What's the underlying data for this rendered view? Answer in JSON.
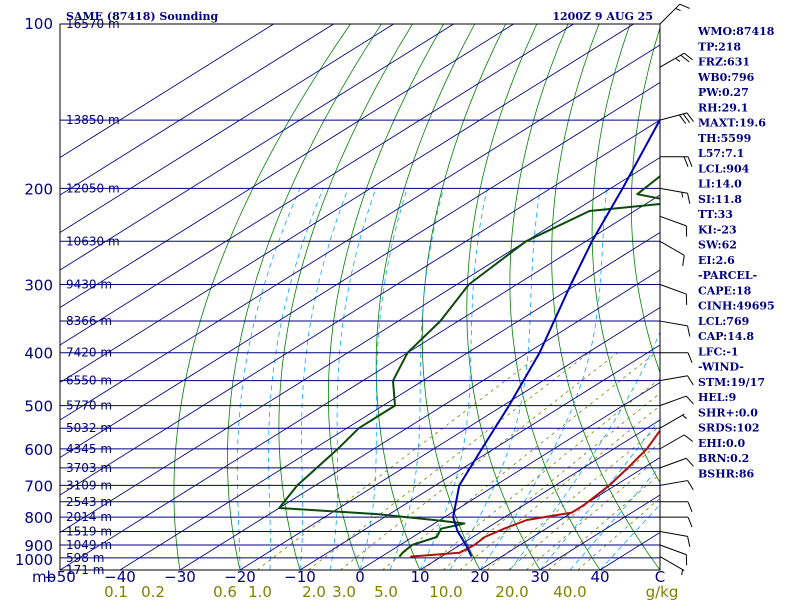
{
  "chart_data": {
    "type": "line",
    "title": "SAME (87418) Sounding",
    "datetime": "1200Z  9 AUG 25",
    "pressure_ticks": [
      "100",
      "200",
      "300",
      "400",
      "500",
      "600",
      "700",
      "800",
      "900",
      "1000"
    ],
    "pressure_tick_values": [
      100,
      200,
      300,
      400,
      500,
      600,
      700,
      800,
      900,
      1000
    ],
    "temperature_axis_unit": "mb",
    "temperature_ticks": [
      "−50",
      "−40",
      "−30",
      "−20",
      "−10",
      "0",
      "10",
      "20",
      "30",
      "40",
      "C"
    ],
    "temperature_tick_values": [
      -50,
      -40,
      -30,
      -20,
      -10,
      0,
      10,
      20,
      30,
      40
    ],
    "mixing_ratio_ticks": [
      "0.1",
      "0.2",
      "0.6",
      "1.0",
      "2.0",
      "3.0",
      "5.0",
      "10.0",
      "20.0",
      "40.0",
      "g/kg"
    ],
    "height_levels": [
      {
        "p": 100,
        "label": "16570 m"
      },
      {
        "p": 150,
        "label": "13850 m"
      },
      {
        "p": 200,
        "label": "12050 m"
      },
      {
        "p": 250,
        "label": "10630 m"
      },
      {
        "p": 300,
        "label": "9430 m"
      },
      {
        "p": 350,
        "label": "8366 m"
      },
      {
        "p": 400,
        "label": "7420 m"
      },
      {
        "p": 450,
        "label": "6550 m"
      },
      {
        "p": 500,
        "label": "5770 m"
      },
      {
        "p": 550,
        "label": "5032 m"
      },
      {
        "p": 600,
        "label": "4345 m"
      },
      {
        "p": 650,
        "label": "3703 m"
      },
      {
        "p": 700,
        "label": "3109 m"
      },
      {
        "p": 750,
        "label": "2543 m"
      },
      {
        "p": 800,
        "label": "2014 m"
      },
      {
        "p": 850,
        "label": "1519 m"
      },
      {
        "p": 900,
        "label": "1049 m"
      },
      {
        "p": 950,
        "label": "598 m"
      },
      {
        "p": 1000,
        "label": "171 m"
      }
    ],
    "series": [
      {
        "name": "Temperature",
        "color": "#b01010",
        "points": [
          [
            945,
            4.8
          ],
          [
            930,
            12.0
          ],
          [
            900,
            12.4
          ],
          [
            870,
            12.0
          ],
          [
            840,
            13.0
          ],
          [
            810,
            14.5
          ],
          [
            785,
            20.0
          ],
          [
            760,
            20.0
          ],
          [
            700,
            19.0
          ],
          [
            650,
            17.4
          ],
          [
            600,
            15.5
          ],
          [
            550,
            12.5
          ],
          [
            500,
            7.0
          ],
          [
            450,
            2.5
          ],
          [
            400,
            -2.0
          ],
          [
            350,
            -8.5
          ],
          [
            300,
            -13.0
          ],
          [
            250,
            -19.0
          ],
          [
            230,
            -22.0
          ],
          [
            215,
            -23.5
          ],
          [
            200,
            -19.5
          ],
          [
            190,
            -18.0
          ],
          [
            175,
            -16.0
          ],
          [
            160,
            -13.0
          ],
          [
            150,
            -10.0
          ],
          [
            130,
            -5.0
          ],
          [
            110,
            -1.0
          ],
          [
            100,
            2.0
          ]
        ]
      },
      {
        "name": "Dewpoint",
        "color": "#0a4a0a",
        "points": [
          [
            945,
            3.0
          ],
          [
            930,
            2.5
          ],
          [
            900,
            2.0
          ],
          [
            870,
            4.0
          ],
          [
            840,
            2.5
          ],
          [
            822,
            5.0
          ],
          [
            810,
            -1.0
          ],
          [
            790,
            -12.0
          ],
          [
            770,
            -30.0
          ],
          [
            700,
            -33.0
          ],
          [
            600,
            -36.0
          ],
          [
            550,
            -38.0
          ],
          [
            500,
            -38.0
          ],
          [
            450,
            -45.0
          ],
          [
            400,
            -50.0
          ],
          [
            350,
            -53.0
          ],
          [
            300,
            -58.0
          ],
          [
            250,
            -60.0
          ],
          [
            220,
            -57.5
          ],
          [
            212,
            -45.0
          ],
          [
            205,
            -54.0
          ],
          [
            190,
            -55.0
          ],
          [
            175,
            -58.0
          ],
          [
            160,
            -62.0
          ],
          [
            150,
            -67.0
          ],
          [
            130,
            -72.0
          ],
          [
            110,
            -76.0
          ],
          [
            100,
            -79.0
          ]
        ]
      },
      {
        "name": "Parcel",
        "color": "#0000b0",
        "points": [
          [
            945,
            15.0
          ],
          [
            900,
            11.0
          ],
          [
            850,
            6.0
          ],
          [
            800,
            1.4
          ],
          [
            700,
            -6.0
          ],
          [
            600,
            -12.0
          ],
          [
            500,
            -19.0
          ],
          [
            400,
            -28.0
          ],
          [
            300,
            -41.0
          ],
          [
            250,
            -49.0
          ],
          [
            200,
            -58.0
          ],
          [
            150,
            -70.0
          ],
          [
            120,
            -79.0
          ]
        ]
      }
    ],
    "wind_barbs": {
      "color": "#000000",
      "values": [
        {
          "p": 100,
          "dir": 45,
          "spd": 15
        },
        {
          "p": 120,
          "dir": 60,
          "spd": 25
        },
        {
          "p": 150,
          "dir": 75,
          "spd": 30
        },
        {
          "p": 175,
          "dir": 90,
          "spd": 20
        },
        {
          "p": 200,
          "dir": 100,
          "spd": 15
        },
        {
          "p": 225,
          "dir": 110,
          "spd": 10
        },
        {
          "p": 250,
          "dir": 120,
          "spd": 10
        },
        {
          "p": 300,
          "dir": 110,
          "spd": 10
        },
        {
          "p": 350,
          "dir": 100,
          "spd": 10
        },
        {
          "p": 400,
          "dir": 90,
          "spd": 10
        },
        {
          "p": 450,
          "dir": 80,
          "spd": 10
        },
        {
          "p": 500,
          "dir": 70,
          "spd": 10
        },
        {
          "p": 550,
          "dir": 60,
          "spd": 5
        },
        {
          "p": 600,
          "dir": 60,
          "spd": 10
        },
        {
          "p": 650,
          "dir": 70,
          "spd": 10
        },
        {
          "p": 700,
          "dir": 80,
          "spd": 10
        },
        {
          "p": 750,
          "dir": 90,
          "spd": 10
        },
        {
          "p": 800,
          "dir": 90,
          "spd": 10
        },
        {
          "p": 850,
          "dir": 100,
          "spd": 10
        },
        {
          "p": 900,
          "dir": 110,
          "spd": 10
        },
        {
          "p": 945,
          "dir": 120,
          "spd": 5
        }
      ]
    },
    "colors": {
      "background": "#ffffff",
      "frame": "#000000",
      "isobar": "#000080",
      "isotherm": "#000080",
      "dry_adiabat": "#008000",
      "moist_adiabat": "#00aaff",
      "mixing_ratio": "#808000",
      "text": "#000080",
      "mixing_ratio_text": "#808000"
    },
    "axis_ranges": {
      "pressure": [
        1000,
        100
      ],
      "temperature_at_1000mb": [
        -50,
        50
      ]
    }
  },
  "indices": [
    "WMO:87418",
    "TP:218",
    "FRZ:631",
    "WB0:796",
    "PW:0.27",
    "RH:29.1",
    "MAXT:19.6",
    "TH:5599",
    "L57:7.1",
    "LCL:904",
    "LI:14.0",
    "SI:11.8",
    "TT:33",
    "KI:-23",
    "SW:62",
    "EI:2.6",
    "-PARCEL-",
    "CAPE:18",
    "CINH:49695",
    "LCL:769",
    "CAP:14.8",
    "LFC:-1",
    "-WIND-",
    "STM:19/17",
    "HEL:9",
    "SHR+:0.0",
    "SRDS:102",
    "EHI:0.0",
    "BRN:0.2",
    "BSHR:86"
  ]
}
